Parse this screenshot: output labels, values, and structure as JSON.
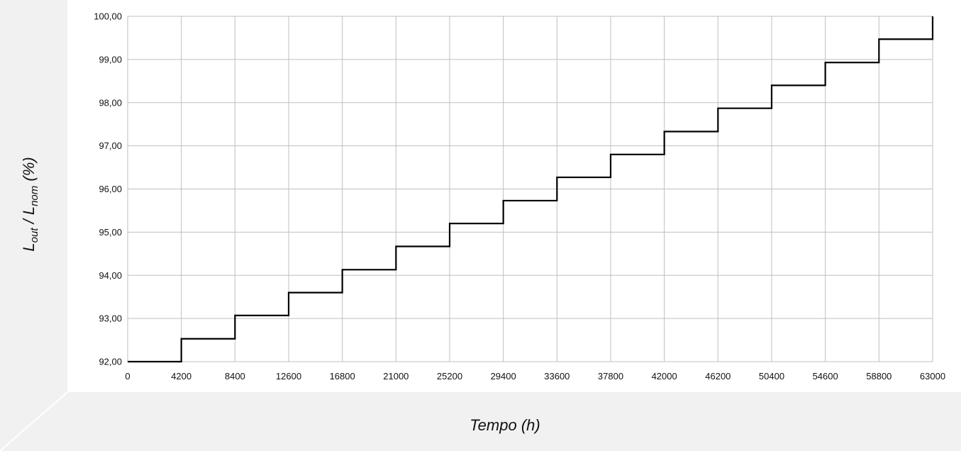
{
  "chart_data": {
    "type": "line",
    "step": true,
    "xlabel": "Tempo (h)",
    "ylabel": "L_out / L_nom (%)",
    "ylabel_parts": {
      "l1": "L",
      "sub1": "out",
      "sep": " / ",
      "l2": "L",
      "sub2": "nom",
      "unit": " (%)"
    },
    "x_ticks": [
      "0",
      "4200",
      "8400",
      "12600",
      "16800",
      "21000",
      "25200",
      "29400",
      "33600",
      "37800",
      "42000",
      "46200",
      "50400",
      "54600",
      "58800",
      "63000"
    ],
    "y_ticks": [
      "92,00",
      "93,00",
      "94,00",
      "95,00",
      "96,00",
      "97,00",
      "98,00",
      "99,00",
      "100,00"
    ],
    "xlim": [
      0,
      63000
    ],
    "ylim": [
      92,
      100
    ],
    "grid": true,
    "series": [
      {
        "color": "#000000",
        "x": [
          0,
          4200,
          8400,
          12600,
          16800,
          21000,
          25200,
          29400,
          33600,
          37800,
          42000,
          46200,
          50400,
          54600,
          58800,
          63000
        ],
        "y": [
          92.0,
          92.53,
          93.07,
          93.6,
          94.13,
          94.67,
          95.2,
          95.73,
          96.27,
          96.8,
          97.33,
          97.87,
          98.4,
          98.93,
          99.47,
          100.0
        ]
      }
    ]
  }
}
